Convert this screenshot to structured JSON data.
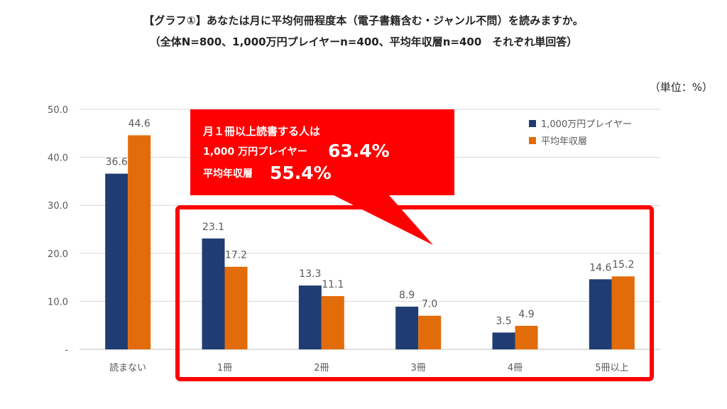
{
  "header": {
    "title": "【グラフ①】あなたは月に平均何冊程度本（電子書籍含む・ジャンル不問）を読みますか。",
    "subtitle": "（全体N=800、1,000万円プレイヤーn=400、平均年収層n=400　それぞれ単回答）",
    "unit": "（単位：%）"
  },
  "callout": {
    "line1": "月１冊以上読書する人は",
    "line2_label": "1,000 万円プレイヤー",
    "line2_value": "63.4%",
    "line3_label": "平均年収層",
    "line3_value": "55.4%"
  },
  "colors": {
    "series1": "#1f3d73",
    "series2": "#e36c0a",
    "callout": "#ff0000",
    "grid": "#d9d9d9"
  },
  "chart_data": {
    "type": "bar",
    "categories": [
      "読まない",
      "1冊",
      "2冊",
      "3冊",
      "4冊",
      "5冊以上"
    ],
    "series": [
      {
        "name": "1,000万円プレイヤー",
        "values": [
          36.6,
          23.1,
          13.3,
          8.9,
          3.5,
          14.6
        ]
      },
      {
        "name": "平均年収層",
        "values": [
          44.6,
          17.2,
          11.1,
          7.0,
          4.9,
          15.2
        ]
      }
    ],
    "yticks": [
      "-",
      "10.0",
      "20.0",
      "30.0",
      "40.0",
      "50.0"
    ],
    "ylim": [
      0,
      50
    ],
    "grid": true,
    "legend": "top-right",
    "highlight_categories": [
      "1冊",
      "2冊",
      "3冊",
      "4冊",
      "5冊以上"
    ]
  }
}
